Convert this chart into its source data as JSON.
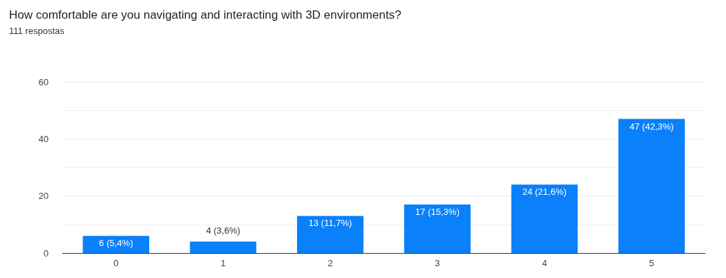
{
  "chart_data": {
    "type": "bar",
    "title": "How comfortable are you navigating and interacting with 3D environments?",
    "subtitle": "111 respostas",
    "categories": [
      "0",
      "1",
      "2",
      "3",
      "4",
      "5"
    ],
    "values": [
      6,
      4,
      13,
      17,
      24,
      47
    ],
    "value_labels": [
      "6 (5,4%)",
      "4 (3,6%)",
      "13 (11,7%)",
      "17 (15,3%)",
      "24 (21,6%)",
      "47 (42,3%)"
    ],
    "color": "#0a80fa",
    "ylim": [
      0,
      60
    ],
    "yticks": [
      0,
      {
        "value": 10,
        "label": null
      },
      20,
      {
        "value": 30,
        "label": null
      },
      40,
      {
        "value": 50,
        "label": null
      },
      60
    ],
    "grid": true
  }
}
